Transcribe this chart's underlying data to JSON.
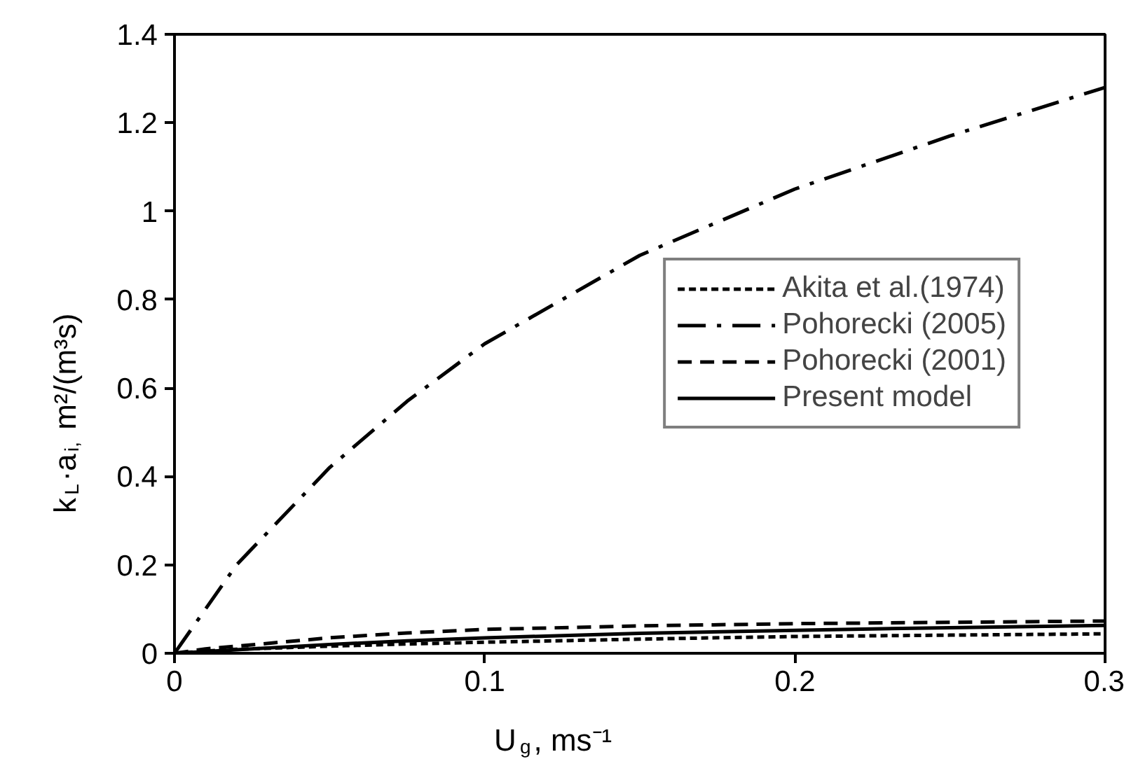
{
  "chart_data": {
    "type": "line",
    "xlabel": "U$_{g}$, ms⁻¹",
    "ylabel": "k$_{L}$·a$_{i,}$ m²/(m³s)",
    "x": [
      0,
      0.01,
      0.02,
      0.05,
      0.075,
      0.1,
      0.15,
      0.2,
      0.25,
      0.3
    ],
    "series": [
      {
        "name": "Akita et al.(1974)",
        "color": "#000000",
        "line_style": "dotted",
        "values": [
          0,
          0.005,
          0.009,
          0.016,
          0.021,
          0.025,
          0.032,
          0.038,
          0.041,
          0.044
        ]
      },
      {
        "name": "Pohorecki (2005)",
        "color": "#000000",
        "line_style": "dashdot",
        "values": [
          0,
          0.1,
          0.2,
          0.42,
          0.57,
          0.7,
          0.9,
          1.05,
          1.17,
          1.28
        ]
      },
      {
        "name": "Pohorecki (2001)",
        "color": "#000000",
        "line_style": "dashed",
        "values": [
          0,
          0.01,
          0.016,
          0.035,
          0.046,
          0.054,
          0.062,
          0.067,
          0.07,
          0.073
        ]
      },
      {
        "name": "Present model",
        "color": "#000000",
        "line_style": "solid",
        "values": [
          0,
          0.004,
          0.008,
          0.02,
          0.028,
          0.035,
          0.045,
          0.052,
          0.058,
          0.063
        ]
      }
    ],
    "xlim": [
      0,
      0.3
    ],
    "xticks": [
      0,
      0.1,
      0.2,
      0.3
    ],
    "ylim": [
      0,
      1.4
    ],
    "yticks": [
      0,
      0.2,
      0.4,
      0.6,
      0.8,
      1,
      1.2,
      1.4
    ],
    "grid": false,
    "legend": "right",
    "marker": "none"
  }
}
